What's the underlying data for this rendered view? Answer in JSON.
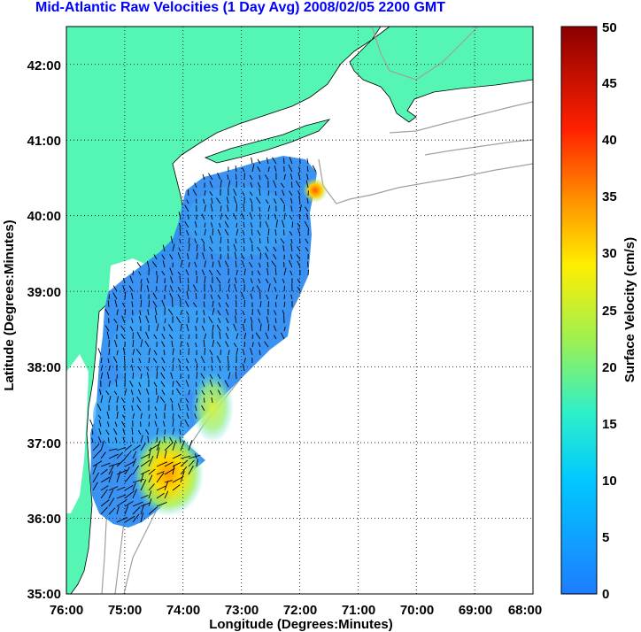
{
  "title": "Mid-Atlantic Raw Velocities (1 Day Avg) 2008/02/05 2200 GMT",
  "xlabel": "Longitude (Degrees:Minutes)",
  "ylabel": "Latitude (Degrees:Minutes)",
  "colorbar_label": "Surface Velocity (cm/s)",
  "x_ticks": [
    "76:00",
    "75:00",
    "74:00",
    "73:00",
    "72:00",
    "71:00",
    "70:00",
    "69:00",
    "68:00"
  ],
  "y_ticks": [
    "35:00",
    "36:00",
    "37:00",
    "38:00",
    "39:00",
    "40:00",
    "41:00",
    "42:00"
  ],
  "colorbar_ticks": [
    "0",
    "5",
    "10",
    "15",
    "20",
    "25",
    "30",
    "35",
    "40",
    "45",
    "50"
  ],
  "colors": {
    "land": "#55f5b4",
    "title": "#0000ff",
    "bathymetry": "#a0a0a0",
    "low_velocity": "#1e7cff",
    "high_velocity": "#8b0000"
  },
  "chart_data": {
    "type": "heatmap",
    "title": "Mid-Atlantic Raw Velocities (1 Day Avg) 2008/02/05 2200 GMT",
    "xlabel": "Longitude (Degrees:Minutes)",
    "ylabel": "Latitude (Degrees:Minutes)",
    "xlim": [
      -76,
      -68
    ],
    "ylim": [
      35,
      42.5
    ],
    "colorbar": {
      "label": "Surface Velocity (cm/s)",
      "range": [
        0,
        50
      ],
      "colormap": "jet"
    },
    "grid": true,
    "velocity_hotspots": [
      {
        "lon": -74.2,
        "lat": 36.75,
        "speed": 28
      },
      {
        "lon": -73.6,
        "lat": 37.6,
        "speed": 20
      },
      {
        "lon": -71.6,
        "lat": 40.35,
        "speed": 35
      }
    ]
  }
}
